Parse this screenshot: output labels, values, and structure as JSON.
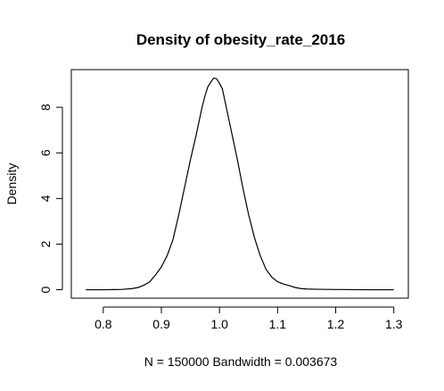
{
  "chart_data": {
    "type": "line",
    "title": "Density of obesity_rate_2016",
    "xlabel": "N = 150000   Bandwidth = 0.003673",
    "ylabel": "Density",
    "xlim": [
      0.745,
      1.325
    ],
    "ylim": [
      -0.37,
      9.65
    ],
    "x_ticks": [
      0.8,
      0.9,
      1.0,
      1.1,
      1.2,
      1.3
    ],
    "x_tick_labels": [
      "0.8",
      "0.9",
      "1.0",
      "1.1",
      "1.2",
      "1.3"
    ],
    "y_ticks": [
      0,
      2,
      4,
      6,
      8
    ],
    "y_tick_labels": [
      "0",
      "2",
      "4",
      "6",
      "8"
    ],
    "grid": false,
    "legend": "none",
    "line_color": "#000000",
    "series": [
      {
        "x": [
          0.77,
          0.8,
          0.83,
          0.85,
          0.86,
          0.87,
          0.88,
          0.89,
          0.9,
          0.91,
          0.92,
          0.93,
          0.94,
          0.95,
          0.96,
          0.965,
          0.97,
          0.975,
          0.98,
          0.985,
          0.99,
          0.995,
          1.0,
          1.005,
          1.01,
          1.015,
          1.02,
          1.03,
          1.04,
          1.05,
          1.06,
          1.07,
          1.08,
          1.09,
          1.1,
          1.11,
          1.12,
          1.13,
          1.14,
          1.15,
          1.17,
          1.2,
          1.25,
          1.3
        ],
        "y": [
          0.0,
          0.0,
          0.01,
          0.05,
          0.1,
          0.2,
          0.35,
          0.65,
          1.0,
          1.5,
          2.2,
          3.3,
          4.5,
          5.7,
          6.8,
          7.4,
          8.0,
          8.5,
          8.9,
          9.1,
          9.28,
          9.25,
          9.05,
          8.8,
          8.2,
          7.6,
          7.0,
          5.8,
          4.5,
          3.3,
          2.3,
          1.5,
          0.9,
          0.55,
          0.35,
          0.25,
          0.18,
          0.1,
          0.05,
          0.03,
          0.02,
          0.01,
          0.0,
          0.0
        ]
      }
    ]
  }
}
